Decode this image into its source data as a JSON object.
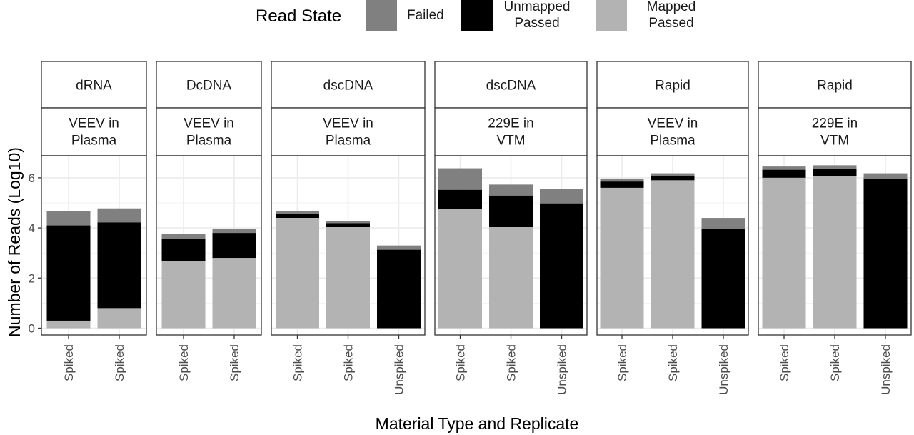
{
  "chart_data": {
    "type": "bar",
    "stacked": true,
    "xlabel": "Material Type and Replicate",
    "ylabel": "Number of Reads (Log10)",
    "ylim": [
      0,
      6.6
    ],
    "yticks": [
      0,
      2,
      4,
      6
    ],
    "grid": true,
    "legend": {
      "title": "Read State",
      "position": "top",
      "entries": [
        {
          "key": "failed",
          "label_lines": [
            "Failed"
          ],
          "color": "#808080"
        },
        {
          "key": "unmapped",
          "label_lines": [
            "Unmapped",
            "Passed"
          ],
          "color": "#000000"
        },
        {
          "key": "mapped",
          "label_lines": [
            "Mapped",
            "Passed"
          ],
          "color": "#b3b3b3"
        }
      ]
    },
    "panels": [
      {
        "strip1": "dRNA",
        "strip2": [
          "VEEV in",
          "Plasma"
        ],
        "bars": [
          {
            "label": "Spiked",
            "mapped": 0.3,
            "unmapped": 4.1,
            "failed": 4.68
          },
          {
            "label": "Spiked",
            "mapped": 0.8,
            "unmapped": 4.22,
            "failed": 4.78
          }
        ]
      },
      {
        "strip1": "DcDNA",
        "strip2": [
          "VEEV in",
          "Plasma"
        ],
        "bars": [
          {
            "label": "Spiked",
            "mapped": 2.67,
            "unmapped": 3.56,
            "failed": 3.76
          },
          {
            "label": "Spiked",
            "mapped": 2.8,
            "unmapped": 3.8,
            "failed": 3.95
          }
        ]
      },
      {
        "strip1": "dscDNA",
        "strip2": [
          "VEEV in",
          "Plasma"
        ],
        "bars": [
          {
            "label": "Spiked",
            "mapped": 4.4,
            "unmapped": 4.56,
            "failed": 4.68
          },
          {
            "label": "Spiked",
            "mapped": 4.03,
            "unmapped": 4.19,
            "failed": 4.27
          },
          {
            "label": "Unspiked",
            "mapped": 0,
            "unmapped": 3.13,
            "failed": 3.3
          }
        ]
      },
      {
        "strip1": "dscDNA",
        "strip2": [
          "229E in",
          "VTM"
        ],
        "bars": [
          {
            "label": "Spiked",
            "mapped": 4.75,
            "unmapped": 5.52,
            "failed": 6.38
          },
          {
            "label": "Spiked",
            "mapped": 4.03,
            "unmapped": 5.29,
            "failed": 5.73
          },
          {
            "label": "Unspiked",
            "mapped": 0,
            "unmapped": 4.98,
            "failed": 5.56
          }
        ]
      },
      {
        "strip1": "Rapid",
        "strip2": [
          "VEEV in",
          "Plasma"
        ],
        "bars": [
          {
            "label": "Spiked",
            "mapped": 5.6,
            "unmapped": 5.85,
            "failed": 5.97
          },
          {
            "label": "Spiked",
            "mapped": 5.9,
            "unmapped": 6.08,
            "failed": 6.18
          },
          {
            "label": "Unspiked",
            "mapped": 0,
            "unmapped": 3.97,
            "failed": 4.4
          }
        ]
      },
      {
        "strip1": "Rapid",
        "strip2": [
          "229E in",
          "VTM"
        ],
        "bars": [
          {
            "label": "Spiked",
            "mapped": 6.0,
            "unmapped": 6.32,
            "failed": 6.45
          },
          {
            "label": "Spiked",
            "mapped": 6.05,
            "unmapped": 6.35,
            "failed": 6.5
          },
          {
            "label": "Unspiked",
            "mapped": 0,
            "unmapped": 5.97,
            "failed": 6.18
          }
        ]
      }
    ]
  }
}
